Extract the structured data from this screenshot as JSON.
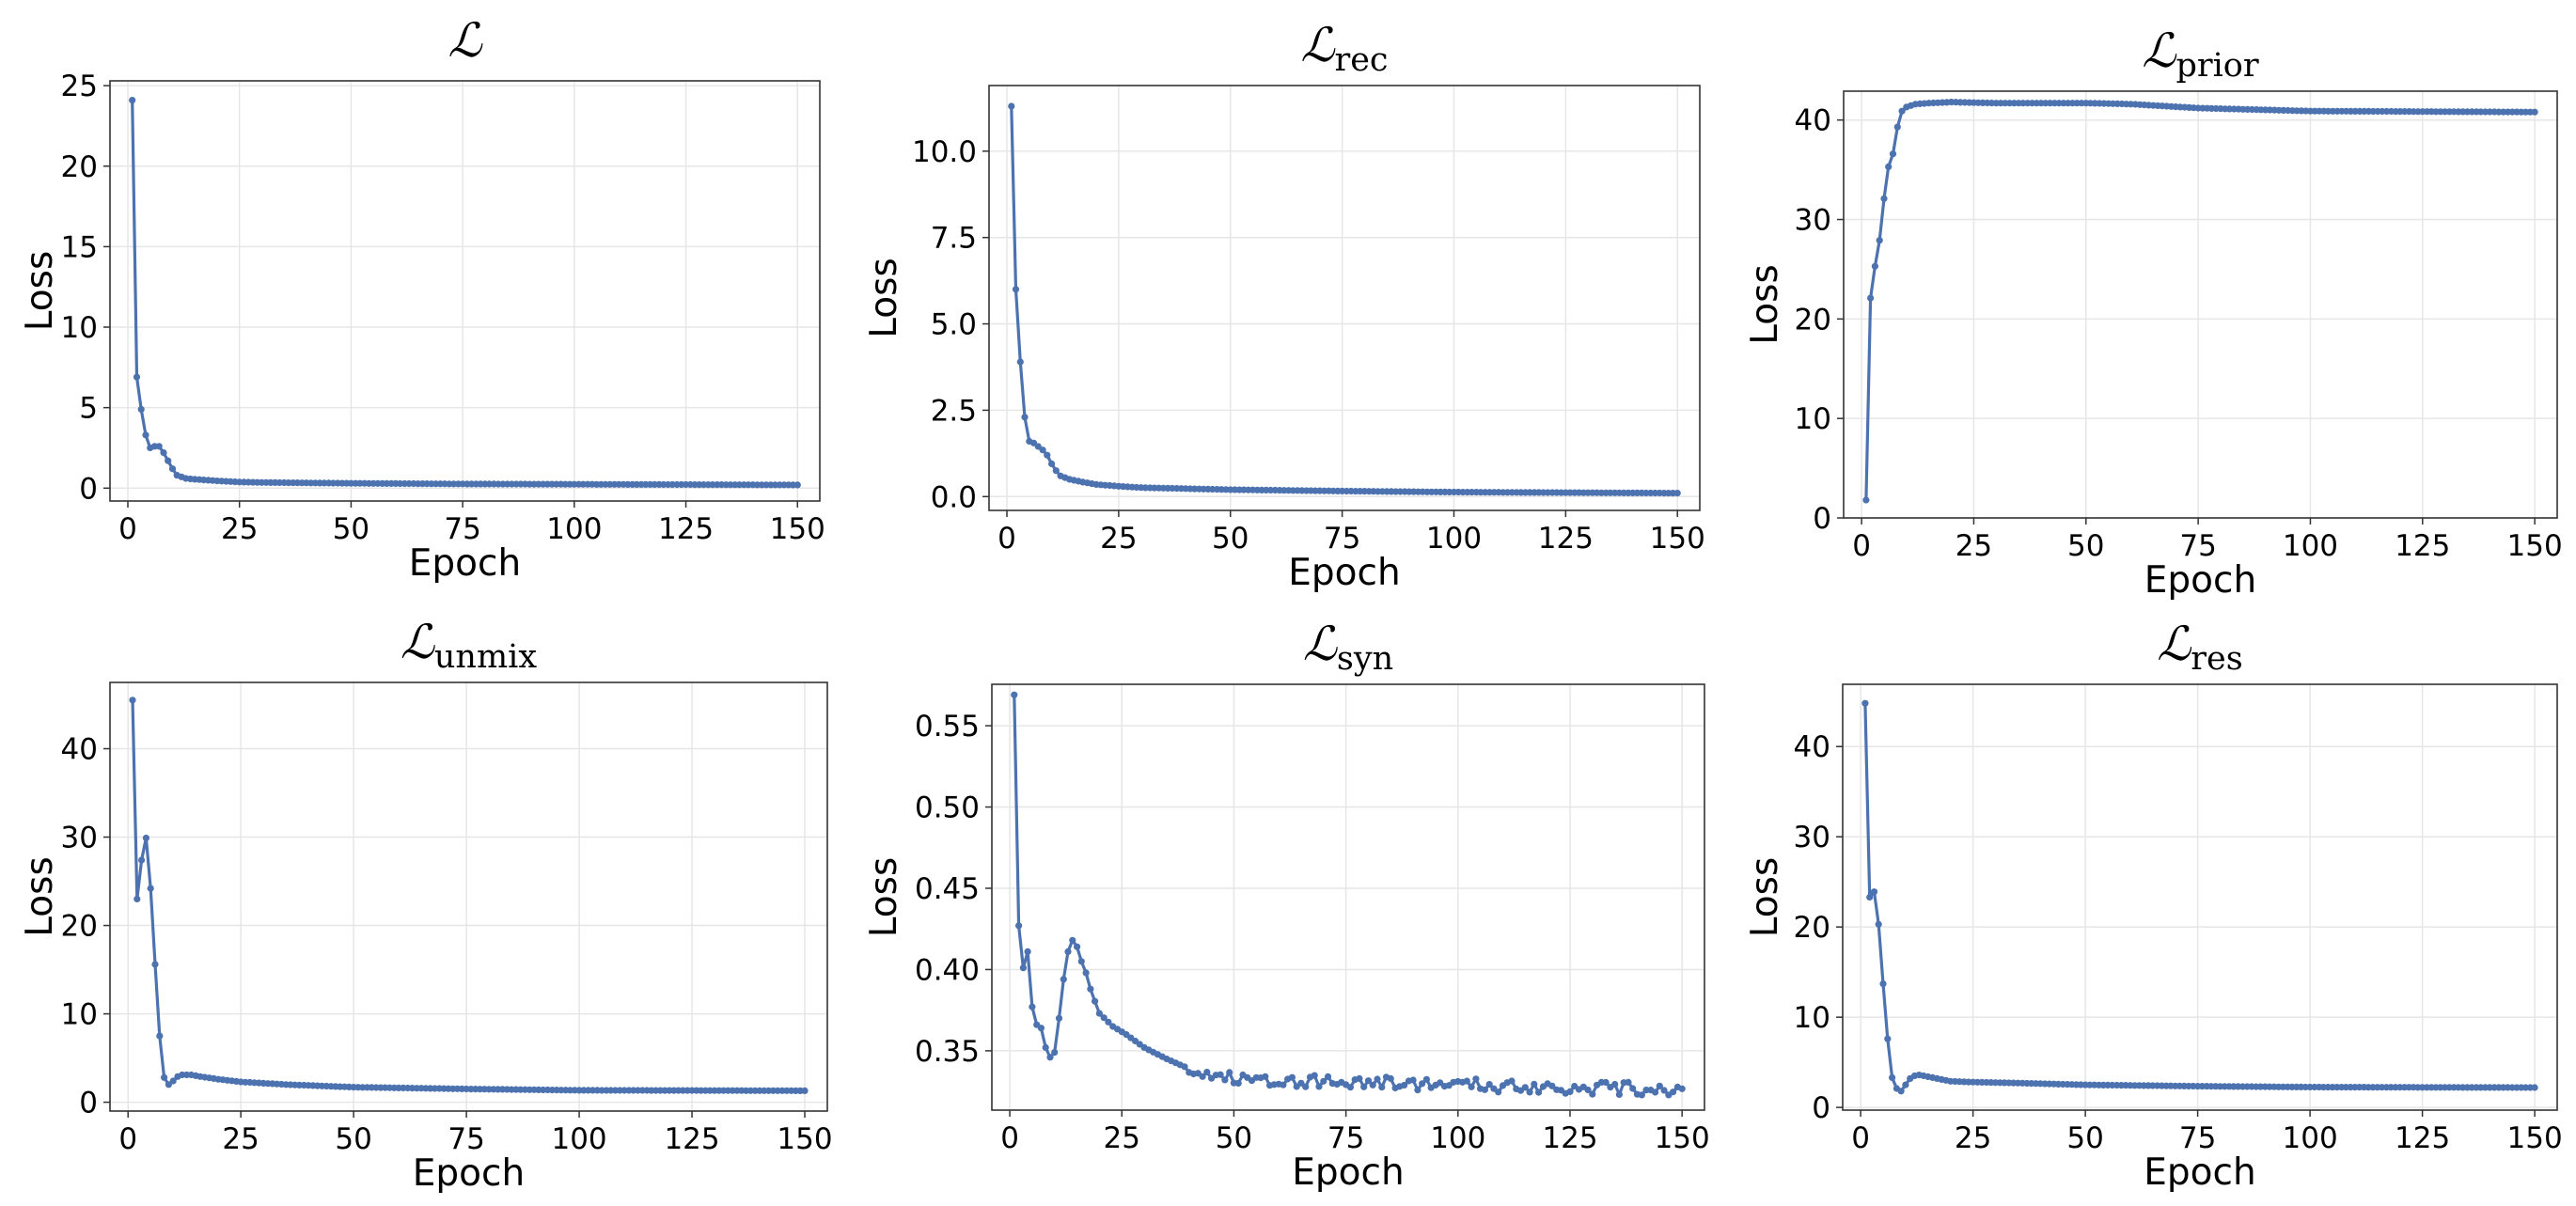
{
  "figure": {
    "line_color": "#4c72b0",
    "grid_color": "#e6e6e6",
    "frame_color": "#333333",
    "grid": true
  },
  "chart_data": [
    {
      "type": "line",
      "title": "ℒ",
      "title_sub": "",
      "xlabel": "Epoch",
      "ylabel": "Loss",
      "xlim": [
        -4,
        155
      ],
      "ylim": [
        -0.8,
        25.3
      ],
      "xticks": [
        0,
        25,
        50,
        75,
        100,
        125,
        150
      ],
      "xtick_labels": [
        "0",
        "25",
        "50",
        "75",
        "100",
        "125",
        "150"
      ],
      "yticks": [
        0,
        5,
        10,
        15,
        20,
        25
      ],
      "ytick_labels": [
        "0",
        "5",
        "10",
        "15",
        "20",
        "25"
      ],
      "series": [
        {
          "keypoints": [
            [
              1,
              24.1
            ],
            [
              2,
              6.9
            ],
            [
              3,
              4.9
            ],
            [
              4,
              3.3
            ],
            [
              5,
              2.5
            ],
            [
              6,
              2.6
            ],
            [
              7,
              2.6
            ],
            [
              8,
              2.2
            ],
            [
              9,
              1.7
            ],
            [
              10,
              1.2
            ],
            [
              11,
              0.8
            ],
            [
              12,
              0.7
            ],
            [
              13,
              0.6
            ],
            [
              15,
              0.55
            ],
            [
              20,
              0.45
            ],
            [
              25,
              0.38
            ],
            [
              30,
              0.35
            ],
            [
              50,
              0.3
            ],
            [
              75,
              0.26
            ],
            [
              100,
              0.24
            ],
            [
              150,
              0.2
            ]
          ],
          "x_range": [
            1,
            150
          ]
        }
      ]
    },
    {
      "type": "line",
      "title": "ℒ",
      "title_sub": "rec",
      "xlabel": "Epoch",
      "ylabel": "Loss",
      "xlim": [
        -4,
        155
      ],
      "ylim": [
        -0.4,
        11.9
      ],
      "xticks": [
        0,
        25,
        50,
        75,
        100,
        125,
        150
      ],
      "xtick_labels": [
        "0",
        "25",
        "50",
        "75",
        "100",
        "125",
        "150"
      ],
      "yticks": [
        0,
        2.5,
        5,
        7.5,
        10
      ],
      "ytick_labels": [
        "0.0",
        "2.5",
        "5.0",
        "7.5",
        "10.0"
      ],
      "series": [
        {
          "keypoints": [
            [
              1,
              11.3
            ],
            [
              2,
              6.0
            ],
            [
              3,
              3.9
            ],
            [
              4,
              2.3
            ],
            [
              5,
              1.6
            ],
            [
              6,
              1.55
            ],
            [
              7,
              1.45
            ],
            [
              8,
              1.35
            ],
            [
              9,
              1.2
            ],
            [
              10,
              0.95
            ],
            [
              11,
              0.75
            ],
            [
              12,
              0.6
            ],
            [
              14,
              0.5
            ],
            [
              17,
              0.42
            ],
            [
              20,
              0.35
            ],
            [
              25,
              0.3
            ],
            [
              30,
              0.26
            ],
            [
              50,
              0.2
            ],
            [
              75,
              0.16
            ],
            [
              100,
              0.13
            ],
            [
              150,
              0.1
            ]
          ],
          "x_range": [
            1,
            150
          ]
        }
      ]
    },
    {
      "type": "line",
      "title": "ℒ",
      "title_sub": "prior",
      "xlabel": "Epoch",
      "ylabel": "Loss",
      "xlim": [
        -4,
        155
      ],
      "ylim": [
        0,
        42.9
      ],
      "xticks": [
        0,
        25,
        50,
        75,
        100,
        125,
        150
      ],
      "xtick_labels": [
        "0",
        "25",
        "50",
        "75",
        "100",
        "125",
        "150"
      ],
      "yticks": [
        0,
        10,
        20,
        30,
        40
      ],
      "ytick_labels": [
        "0",
        "10",
        "20",
        "30",
        "40"
      ],
      "series": [
        {
          "keypoints": [
            [
              1,
              1.8
            ],
            [
              2,
              22.1
            ],
            [
              3,
              25.3
            ],
            [
              4,
              27.9
            ],
            [
              5,
              32.1
            ],
            [
              6,
              35.3
            ],
            [
              7,
              36.6
            ],
            [
              8,
              39.3
            ],
            [
              9,
              40.9
            ],
            [
              10,
              41.3
            ],
            [
              12,
              41.6
            ],
            [
              15,
              41.7
            ],
            [
              20,
              41.8
            ],
            [
              30,
              41.7
            ],
            [
              50,
              41.7
            ],
            [
              60,
              41.6
            ],
            [
              75,
              41.2
            ],
            [
              100,
              40.9
            ],
            [
              150,
              40.8
            ]
          ],
          "x_range": [
            1,
            150
          ]
        }
      ]
    },
    {
      "type": "line",
      "title": "ℒ",
      "title_sub": "unmix",
      "xlabel": "Epoch",
      "ylabel": "Loss",
      "xlim": [
        -4,
        155
      ],
      "ylim": [
        -1,
        47.5
      ],
      "xticks": [
        0,
        25,
        50,
        75,
        100,
        125,
        150
      ],
      "xtick_labels": [
        "0",
        "25",
        "50",
        "75",
        "100",
        "125",
        "150"
      ],
      "yticks": [
        0,
        10,
        20,
        30,
        40
      ],
      "ytick_labels": [
        "0",
        "10",
        "20",
        "30",
        "40"
      ],
      "series": [
        {
          "keypoints": [
            [
              1,
              45.5
            ],
            [
              2,
              23.0
            ],
            [
              3,
              27.4
            ],
            [
              4,
              29.9
            ],
            [
              5,
              24.2
            ],
            [
              6,
              15.6
            ],
            [
              7,
              7.5
            ],
            [
              8,
              2.8
            ],
            [
              9,
              2.0
            ],
            [
              10,
              2.4
            ],
            [
              11,
              2.9
            ],
            [
              12,
              3.1
            ],
            [
              14,
              3.1
            ],
            [
              16,
              2.9
            ],
            [
              20,
              2.6
            ],
            [
              25,
              2.3
            ],
            [
              35,
              2.0
            ],
            [
              50,
              1.7
            ],
            [
              75,
              1.5
            ],
            [
              100,
              1.35
            ],
            [
              150,
              1.3
            ]
          ],
          "x_range": [
            1,
            150
          ]
        }
      ]
    },
    {
      "type": "line",
      "title": "ℒ",
      "title_sub": "syn",
      "xlabel": "Epoch",
      "ylabel": "Loss",
      "xlim": [
        -4,
        155
      ],
      "ylim": [
        0.3135,
        0.5755
      ],
      "xticks": [
        0,
        25,
        50,
        75,
        100,
        125,
        150
      ],
      "xtick_labels": [
        "0",
        "25",
        "50",
        "75",
        "100",
        "125",
        "150"
      ],
      "yticks": [
        0.35,
        0.4,
        0.45,
        0.5,
        0.55
      ],
      "ytick_labels": [
        "0.35",
        "0.40",
        "0.45",
        "0.50",
        "0.55"
      ],
      "series": [
        {
          "keypoints": [
            [
              1,
              0.569
            ],
            [
              2,
              0.427
            ],
            [
              3,
              0.401
            ],
            [
              4,
              0.411
            ],
            [
              5,
              0.377
            ],
            [
              6,
              0.366
            ],
            [
              7,
              0.364
            ],
            [
              8,
              0.352
            ],
            [
              9,
              0.346
            ],
            [
              10,
              0.349
            ],
            [
              11,
              0.37
            ],
            [
              12,
              0.394
            ],
            [
              13,
              0.411
            ],
            [
              14,
              0.418
            ],
            [
              15,
              0.414
            ],
            [
              16,
              0.405
            ],
            [
              17,
              0.398
            ],
            [
              18,
              0.388
            ],
            [
              20,
              0.373
            ],
            [
              23,
              0.365
            ],
            [
              26,
              0.36
            ],
            [
              30,
              0.352
            ],
            [
              35,
              0.345
            ],
            [
              40,
              0.339
            ],
            [
              45,
              0.335
            ],
            [
              50,
              0.333
            ],
            [
              75,
              0.331
            ],
            [
              100,
              0.329
            ],
            [
              150,
              0.326
            ]
          ],
          "noise_amplitude": 0.004,
          "noise_from_x": 40,
          "x_range": [
            1,
            150
          ]
        }
      ]
    },
    {
      "type": "line",
      "title": "ℒ",
      "title_sub": "res",
      "xlabel": "Epoch",
      "ylabel": "Loss",
      "xlim": [
        -4,
        155
      ],
      "ylim": [
        -0.3,
        46.9
      ],
      "xticks": [
        0,
        25,
        50,
        75,
        100,
        125,
        150
      ],
      "xtick_labels": [
        "0",
        "25",
        "50",
        "75",
        "100",
        "125",
        "150"
      ],
      "yticks": [
        0,
        10,
        20,
        30,
        40
      ],
      "ytick_labels": [
        "0",
        "10",
        "20",
        "30",
        "40"
      ],
      "series": [
        {
          "keypoints": [
            [
              1,
              44.8
            ],
            [
              2,
              23.3
            ],
            [
              3,
              23.9
            ],
            [
              4,
              20.3
            ],
            [
              5,
              13.7
            ],
            [
              6,
              7.6
            ],
            [
              7,
              3.3
            ],
            [
              8,
              2.1
            ],
            [
              9,
              1.8
            ],
            [
              10,
              2.5
            ],
            [
              11,
              3.2
            ],
            [
              12,
              3.5
            ],
            [
              13,
              3.6
            ],
            [
              15,
              3.4
            ],
            [
              18,
              3.1
            ],
            [
              20,
              2.9
            ],
            [
              25,
              2.8
            ],
            [
              35,
              2.7
            ],
            [
              50,
              2.5
            ],
            [
              75,
              2.35
            ],
            [
              100,
              2.25
            ],
            [
              150,
              2.2
            ]
          ],
          "x_range": [
            1,
            150
          ]
        }
      ]
    }
  ]
}
